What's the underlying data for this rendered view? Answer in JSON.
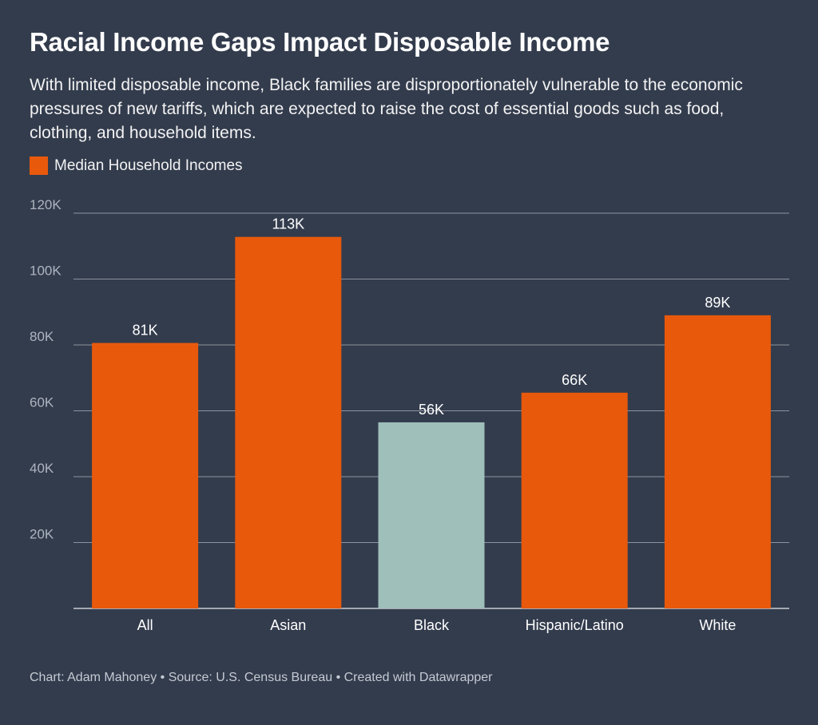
{
  "title": "Racial Income Gaps Impact Disposable Income",
  "subtitle": "With limited disposable income, Black families are disproportionately vulnerable to the economic pressures of new tariffs, which are expected to raise the cost of essential goods such as food, clothing, and household items.",
  "footer": "Chart: Adam Mahoney • Source: U.S. Census Bureau • Created with Datawrapper",
  "colors": {
    "background": "#333c4d",
    "bar": "#e8590c",
    "highlight": "#9fbfba",
    "grid": "#8c93a0",
    "tick_text": "#aeb4bf"
  },
  "chart_data": {
    "type": "bar",
    "legend": {
      "label": "Median Household Incomes",
      "position": "top-left"
    },
    "categories": [
      "All",
      "Asian",
      "Black",
      "Hispanic/Latino",
      "White"
    ],
    "series": [
      {
        "name": "Median Household Incomes",
        "values": [
          80600,
          112800,
          56500,
          65500,
          89000
        ]
      }
    ],
    "data_labels": [
      "81K",
      "113K",
      "56K",
      "66K",
      "89K"
    ],
    "highlighted_category": "Black",
    "ylim": [
      0,
      120000
    ],
    "yticks": [
      20000,
      40000,
      60000,
      80000,
      100000,
      120000
    ],
    "ytick_labels": [
      "20K",
      "40K",
      "60K",
      "80K",
      "100K",
      "120K"
    ],
    "grid": true,
    "xlabel": "",
    "ylabel": ""
  }
}
